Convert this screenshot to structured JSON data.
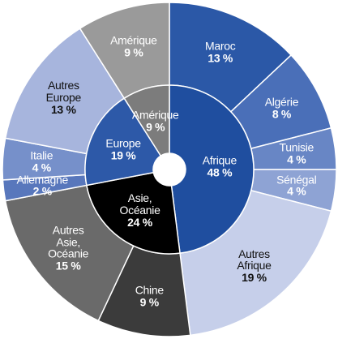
{
  "chart_data": {
    "type": "sunburst",
    "inner": {
      "categories": [
        "Afrique",
        "Asie,\nOcéanie",
        "Europe",
        "Amérique"
      ],
      "values": [
        48,
        24,
        19,
        9
      ],
      "value_labels": [
        "48 %",
        "24 %",
        "19 %",
        "9 %"
      ],
      "colors": [
        "#1f4e9f",
        "#000000",
        "#2d59a8",
        "#7c7c7c"
      ]
    },
    "outer": {
      "categories": [
        "Maroc",
        "Algérie",
        "Tunisie",
        "Sénégal",
        "Autres\nAfrique",
        "Chine",
        "Autres\nAsie,\nOcéanie",
        "Allemagne",
        "Italie",
        "Autres\nEurope",
        "Amérique"
      ],
      "values": [
        13,
        8,
        4,
        4,
        19,
        9,
        15,
        2,
        4,
        13,
        9
      ],
      "value_labels": [
        "13 %",
        "8 %",
        "4 %",
        "4 %",
        "19 %",
        "9 %",
        "15 %",
        "2 %",
        "4 %",
        "13 %",
        "9 %"
      ],
      "colors": [
        "#2b58a7",
        "#4a6fb8",
        "#6886c5",
        "#8ea3d4",
        "#c6cfea",
        "#3b3b3b",
        "#6a6a6a",
        "#5877bc",
        "#7690ca",
        "#a7b5dd",
        "#9a9a9a"
      ]
    }
  }
}
